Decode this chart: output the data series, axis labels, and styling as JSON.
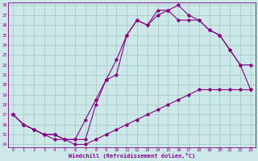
{
  "xlabel": "Windchill (Refroidissement éolien,°C)",
  "bg_color": "#cce8e8",
  "grid_color": "#aacccc",
  "line_color": "#880088",
  "xlim_min": -0.5,
  "xlim_max": 23.5,
  "ylim_min": 13.7,
  "ylim_max": 28.3,
  "xticks": [
    0,
    1,
    2,
    3,
    4,
    5,
    6,
    7,
    8,
    9,
    10,
    11,
    12,
    13,
    14,
    15,
    16,
    17,
    18,
    19,
    20,
    21,
    22,
    23
  ],
  "yticks": [
    14,
    15,
    16,
    17,
    18,
    19,
    20,
    21,
    22,
    23,
    24,
    25,
    26,
    27,
    28
  ],
  "curve_low_x": [
    0,
    1,
    2,
    3,
    4,
    5,
    6,
    7,
    8,
    9,
    10,
    11,
    12,
    13,
    14,
    15,
    16,
    17,
    18,
    19,
    20,
    21,
    22,
    23
  ],
  "curve_low_y": [
    17.0,
    16.0,
    15.5,
    15.0,
    14.5,
    14.5,
    14.0,
    14.0,
    14.5,
    15.0,
    15.5,
    16.0,
    16.5,
    17.0,
    17.5,
    18.0,
    18.5,
    19.0,
    19.5,
    19.5,
    19.5,
    19.5,
    19.5,
    19.5
  ],
  "curve_top_x": [
    0,
    1,
    2,
    3,
    4,
    5,
    6,
    7,
    8,
    9,
    10,
    11,
    12,
    13,
    14,
    15,
    16,
    17,
    18,
    19,
    20,
    21,
    22,
    23
  ],
  "curve_top_y": [
    17.0,
    16.0,
    15.5,
    15.0,
    15.0,
    14.5,
    14.5,
    16.5,
    18.5,
    20.5,
    22.5,
    25.0,
    26.5,
    26.0,
    27.5,
    27.5,
    28.0,
    27.0,
    26.5,
    25.5,
    25.0,
    23.5,
    22.0,
    22.0
  ],
  "curve_mid_x": [
    0,
    1,
    2,
    3,
    4,
    5,
    6,
    7,
    8,
    9,
    10,
    11,
    12,
    13,
    14,
    15,
    16,
    17,
    18,
    19,
    20,
    21,
    22,
    23
  ],
  "curve_mid_y": [
    17.0,
    16.0,
    15.5,
    15.0,
    15.0,
    14.5,
    14.5,
    14.5,
    18.0,
    20.5,
    21.0,
    25.0,
    26.5,
    26.0,
    27.0,
    27.5,
    26.5,
    26.5,
    26.5,
    25.5,
    25.0,
    23.5,
    22.0,
    19.5
  ]
}
